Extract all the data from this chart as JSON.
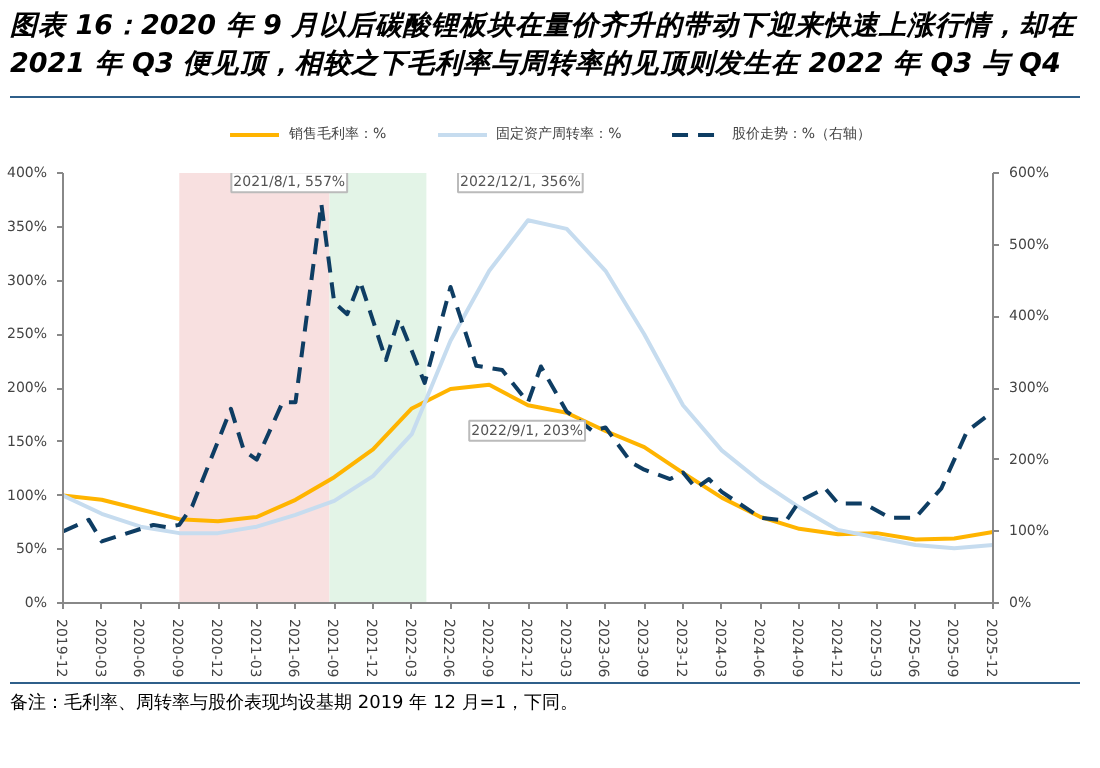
{
  "chart_data": {
    "type": "line",
    "title": "图表 16：2020 年 9 月以后碳酸锂板块在量价齐升的带动下迎来快速上涨行情，却在 2021 年 Q3 便见顶，相较之下毛利率与周转率的见顶则发生在 2022 年 Q3 与 Q4",
    "series": [
      {
        "name": "销售毛利率：%",
        "color": "#ffb400",
        "x": [
          "2019-12",
          "2020-03",
          "2020-06",
          "2020-09",
          "2020-12",
          "2021-03",
          "2021-06",
          "2021-09",
          "2021-12",
          "2022-03",
          "2022-06",
          "2022-09",
          "2022-12",
          "2023-03",
          "2023-06",
          "2023-09",
          "2023-12",
          "2024-03",
          "2024-06",
          "2024-09",
          "2024-12",
          "2025-03",
          "2025-06",
          "2025-09",
          "2025-12"
        ],
        "values": [
          100,
          96,
          87,
          78,
          76,
          80,
          96,
          117,
          143,
          181,
          199,
          203,
          184,
          177,
          160,
          145,
          121,
          98,
          80,
          69,
          64,
          65,
          59,
          60,
          66
        ]
      },
      {
        "name": "固定资产周转率：%",
        "color": "#c6dcef",
        "x": [
          "2019-12",
          "2020-03",
          "2020-06",
          "2020-09",
          "2020-12",
          "2021-03",
          "2021-06",
          "2021-09",
          "2021-12",
          "2022-03",
          "2022-06",
          "2022-09",
          "2022-12",
          "2023-03",
          "2023-06",
          "2023-09",
          "2023-12",
          "2024-03",
          "2024-06",
          "2024-09",
          "2024-12",
          "2025-03",
          "2025-06",
          "2025-09",
          "2025-12"
        ],
        "values": [
          100,
          83,
          71,
          65,
          65,
          71,
          82,
          95,
          118,
          157,
          244,
          309,
          356,
          348,
          309,
          250,
          184,
          142,
          113,
          89,
          68,
          61,
          54,
          51,
          54
        ]
      },
      {
        "name": "股价走势：%（右轴）",
        "color": "#0e3d63",
        "axis": "y2",
        "line_style": "dashed",
        "x": [
          "2019-12",
          "2020-02",
          "2020-03",
          "2020-07",
          "2020-08",
          "2020-09",
          "2020-10",
          "2021-01",
          "2021-02",
          "2021-03",
          "2021-05",
          "2021-06",
          "2021-08",
          "2021-09",
          "2021-10",
          "2021-11",
          "2022-01",
          "2022-02",
          "2022-04",
          "2022-06",
          "2022-08",
          "2022-10",
          "2022-12",
          "2023-01",
          "2023-03",
          "2023-04",
          "2023-05",
          "2023-06",
          "2023-08",
          "2023-09",
          "2023-11",
          "2023-12",
          "2024-01",
          "2024-02",
          "2024-03",
          "2024-06",
          "2024-08",
          "2024-09",
          "2024-11",
          "2024-12",
          "2025-02",
          "2025-04",
          "2025-06",
          "2025-08",
          "2025-10",
          "2025-12"
        ],
        "values": [
          100,
          116,
          86,
          109,
          106,
          109,
          135,
          271,
          213,
          200,
          280,
          280,
          557,
          419,
          403,
          449,
          339,
          397,
          307,
          441,
          331,
          325,
          280,
          330,
          267,
          254,
          240,
          245,
          196,
          186,
          173,
          182,
          160,
          173,
          155,
          119,
          115,
          142,
          160,
          139,
          139,
          119,
          119,
          160,
          240,
          267
        ]
      }
    ],
    "xlim": [
      "2019-12",
      "2025-12"
    ],
    "xticks": [
      "2019-12",
      "2020-03",
      "2020-06",
      "2020-09",
      "2020-12",
      "2021-03",
      "2021-06",
      "2021-09",
      "2021-12",
      "2022-03",
      "2022-06",
      "2022-09",
      "2022-12",
      "2023-03",
      "2023-06",
      "2023-09",
      "2023-12",
      "2024-03",
      "2024-06",
      "2024-09",
      "2024-12",
      "2025-03",
      "2025-06",
      "2025-09",
      "2025-12"
    ],
    "ylim": [
      0,
      400
    ],
    "yticks": [
      {
        "value": 0,
        "label": "0%"
      },
      {
        "value": 50,
        "label": "50%"
      },
      {
        "value": 100,
        "label": "100%"
      },
      {
        "value": 150,
        "label": "150%"
      },
      {
        "value": 200,
        "label": "200%"
      },
      {
        "value": 250,
        "label": "250%"
      },
      {
        "value": 300,
        "label": "300%"
      },
      {
        "value": 350,
        "label": "350%"
      },
      {
        "value": 400,
        "label": "400%"
      }
    ],
    "y2lim": [
      0,
      600
    ],
    "y2ticks": [
      {
        "value": 0,
        "label": "0%"
      },
      {
        "value": 100,
        "label": "100%"
      },
      {
        "value": 200,
        "label": "200%"
      },
      {
        "value": 300,
        "label": "300%"
      },
      {
        "value": 400,
        "label": "400%"
      },
      {
        "value": 500,
        "label": "500%"
      },
      {
        "value": 600,
        "label": "600%"
      }
    ],
    "bands": [
      {
        "axis": "x",
        "from": "2020-09",
        "to": "2021-08-20",
        "color": "#f8e0e0"
      },
      {
        "axis": "x",
        "from": "2021-08-20",
        "to": "2022-04-05",
        "color": "#e3f4e7"
      }
    ],
    "annotations": [
      {
        "text": "2021/8/1, 557%",
        "x": "2021-08",
        "y": 371
      },
      {
        "text": "2022/12/1, 356%",
        "x": "2022-12",
        "y": 356
      },
      {
        "text": "2022/9/1, 203%",
        "x": "2022-09",
        "y": 203
      },
      "备注：毛利率、周转率与股价表现均设基期 2019 年 12 月=1，下同。"
    ],
    "grid": false,
    "legend": "top",
    "marker": "none",
    "line_style": "solid"
  }
}
